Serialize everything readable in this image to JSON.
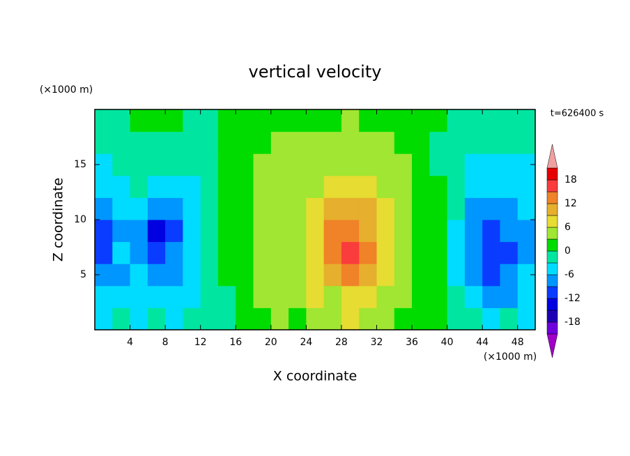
{
  "chart_data": {
    "type": "contour",
    "title": "vertical velocity",
    "x_label": "X coordinate",
    "y_label": "Z coordinate",
    "x_unit": "(×1000 m)",
    "y_unit": "(×1000 m)",
    "time_label": "t=626400 s",
    "xlim": [
      0,
      50
    ],
    "ylim": [
      0,
      20
    ],
    "xticks": [
      4,
      8,
      12,
      16,
      20,
      24,
      28,
      32,
      36,
      40,
      44,
      48
    ],
    "yticks": [
      5,
      10,
      15
    ],
    "x": [
      1,
      3,
      5,
      7,
      9,
      11,
      13,
      15,
      17,
      19,
      21,
      23,
      25,
      27,
      29,
      31,
      33,
      35,
      37,
      39,
      41,
      43,
      45,
      47,
      49
    ],
    "y": [
      1,
      3,
      5,
      7,
      9,
      11,
      13,
      15,
      17,
      19
    ],
    "z": [
      [
        -4,
        -3,
        -4,
        -2,
        -4,
        -3,
        -2,
        -1,
        1,
        2,
        4,
        2,
        5,
        4,
        6,
        4,
        3,
        2,
        1,
        0,
        -2,
        -3,
        -4,
        -3,
        -4
      ],
      [
        -6,
        -5,
        -4,
        -5,
        -5,
        -4,
        -3,
        -1,
        2,
        3,
        4,
        5,
        6,
        5,
        8,
        7,
        5,
        3,
        1,
        0,
        -3,
        -6,
        -8,
        -7,
        -5
      ],
      [
        -8,
        -7,
        -6,
        -9,
        -7,
        -5,
        -3,
        0,
        2,
        3,
        4,
        5,
        7,
        9,
        13,
        10,
        6,
        4,
        1,
        0,
        -4,
        -7,
        -10,
        -9,
        -6
      ],
      [
        -10,
        -6,
        -9,
        -11,
        -8,
        -5,
        -3,
        0,
        2,
        3,
        4,
        5,
        8,
        13,
        16,
        13,
        8,
        5,
        2,
        0,
        -4,
        -8,
        -11,
        -10,
        -7
      ],
      [
        -10,
        -7,
        -8,
        -13,
        -10,
        -5,
        -3,
        0,
        2,
        3,
        4,
        5,
        8,
        12,
        14,
        11,
        8,
        5,
        2,
        0,
        -4,
        -8,
        -10,
        -8,
        -7
      ],
      [
        -8,
        -6,
        -6,
        -9,
        -8,
        -5,
        -3,
        0,
        2,
        3,
        4,
        4,
        7,
        9,
        10,
        9,
        7,
        5,
        2,
        0,
        -3,
        -7,
        -8,
        -7,
        -6
      ],
      [
        -6,
        -4,
        -3,
        -5,
        -6,
        -4,
        -2,
        0,
        2,
        3,
        4,
        4,
        5,
        6,
        7,
        7,
        5,
        4,
        2,
        0,
        -3,
        -5,
        -6,
        -6,
        -5
      ],
      [
        -5,
        -3,
        -2,
        -2,
        -3,
        -3,
        -2,
        0,
        1,
        3,
        3,
        4,
        4,
        5,
        5,
        5,
        4,
        3,
        1,
        -1,
        -2,
        -4,
        -5,
        -4,
        -4
      ],
      [
        -3,
        -2,
        -1,
        -1,
        -1,
        -2,
        -1,
        0,
        1,
        2,
        3,
        3,
        4,
        4,
        4,
        4,
        3,
        2,
        1,
        -1,
        -1,
        -2,
        -2,
        -3,
        -2
      ],
      [
        -1,
        -1,
        0,
        0,
        0,
        -1,
        -1,
        0,
        1,
        1,
        2,
        2,
        2,
        2,
        3,
        2,
        2,
        1,
        0,
        0,
        -1,
        -1,
        -1,
        -1,
        -1
      ]
    ],
    "levels": [
      -21,
      -18,
      -15,
      -12,
      -9,
      -6,
      -3,
      0,
      3,
      6,
      9,
      12,
      15,
      18,
      21
    ],
    "colors": [
      "#a000c8",
      "#6e00dc",
      "#1e00b4",
      "#0000e1",
      "#0a3cff",
      "#0096ff",
      "#00dcff",
      "#00e6a0",
      "#00dc00",
      "#a0e632",
      "#e6dc32",
      "#e6af2d",
      "#f08228",
      "#fa3c3c",
      "#e60000",
      "#f0a0a0"
    ],
    "colorbar_ticks": [
      -18,
      -12,
      -6,
      0,
      6,
      12,
      18
    ]
  }
}
